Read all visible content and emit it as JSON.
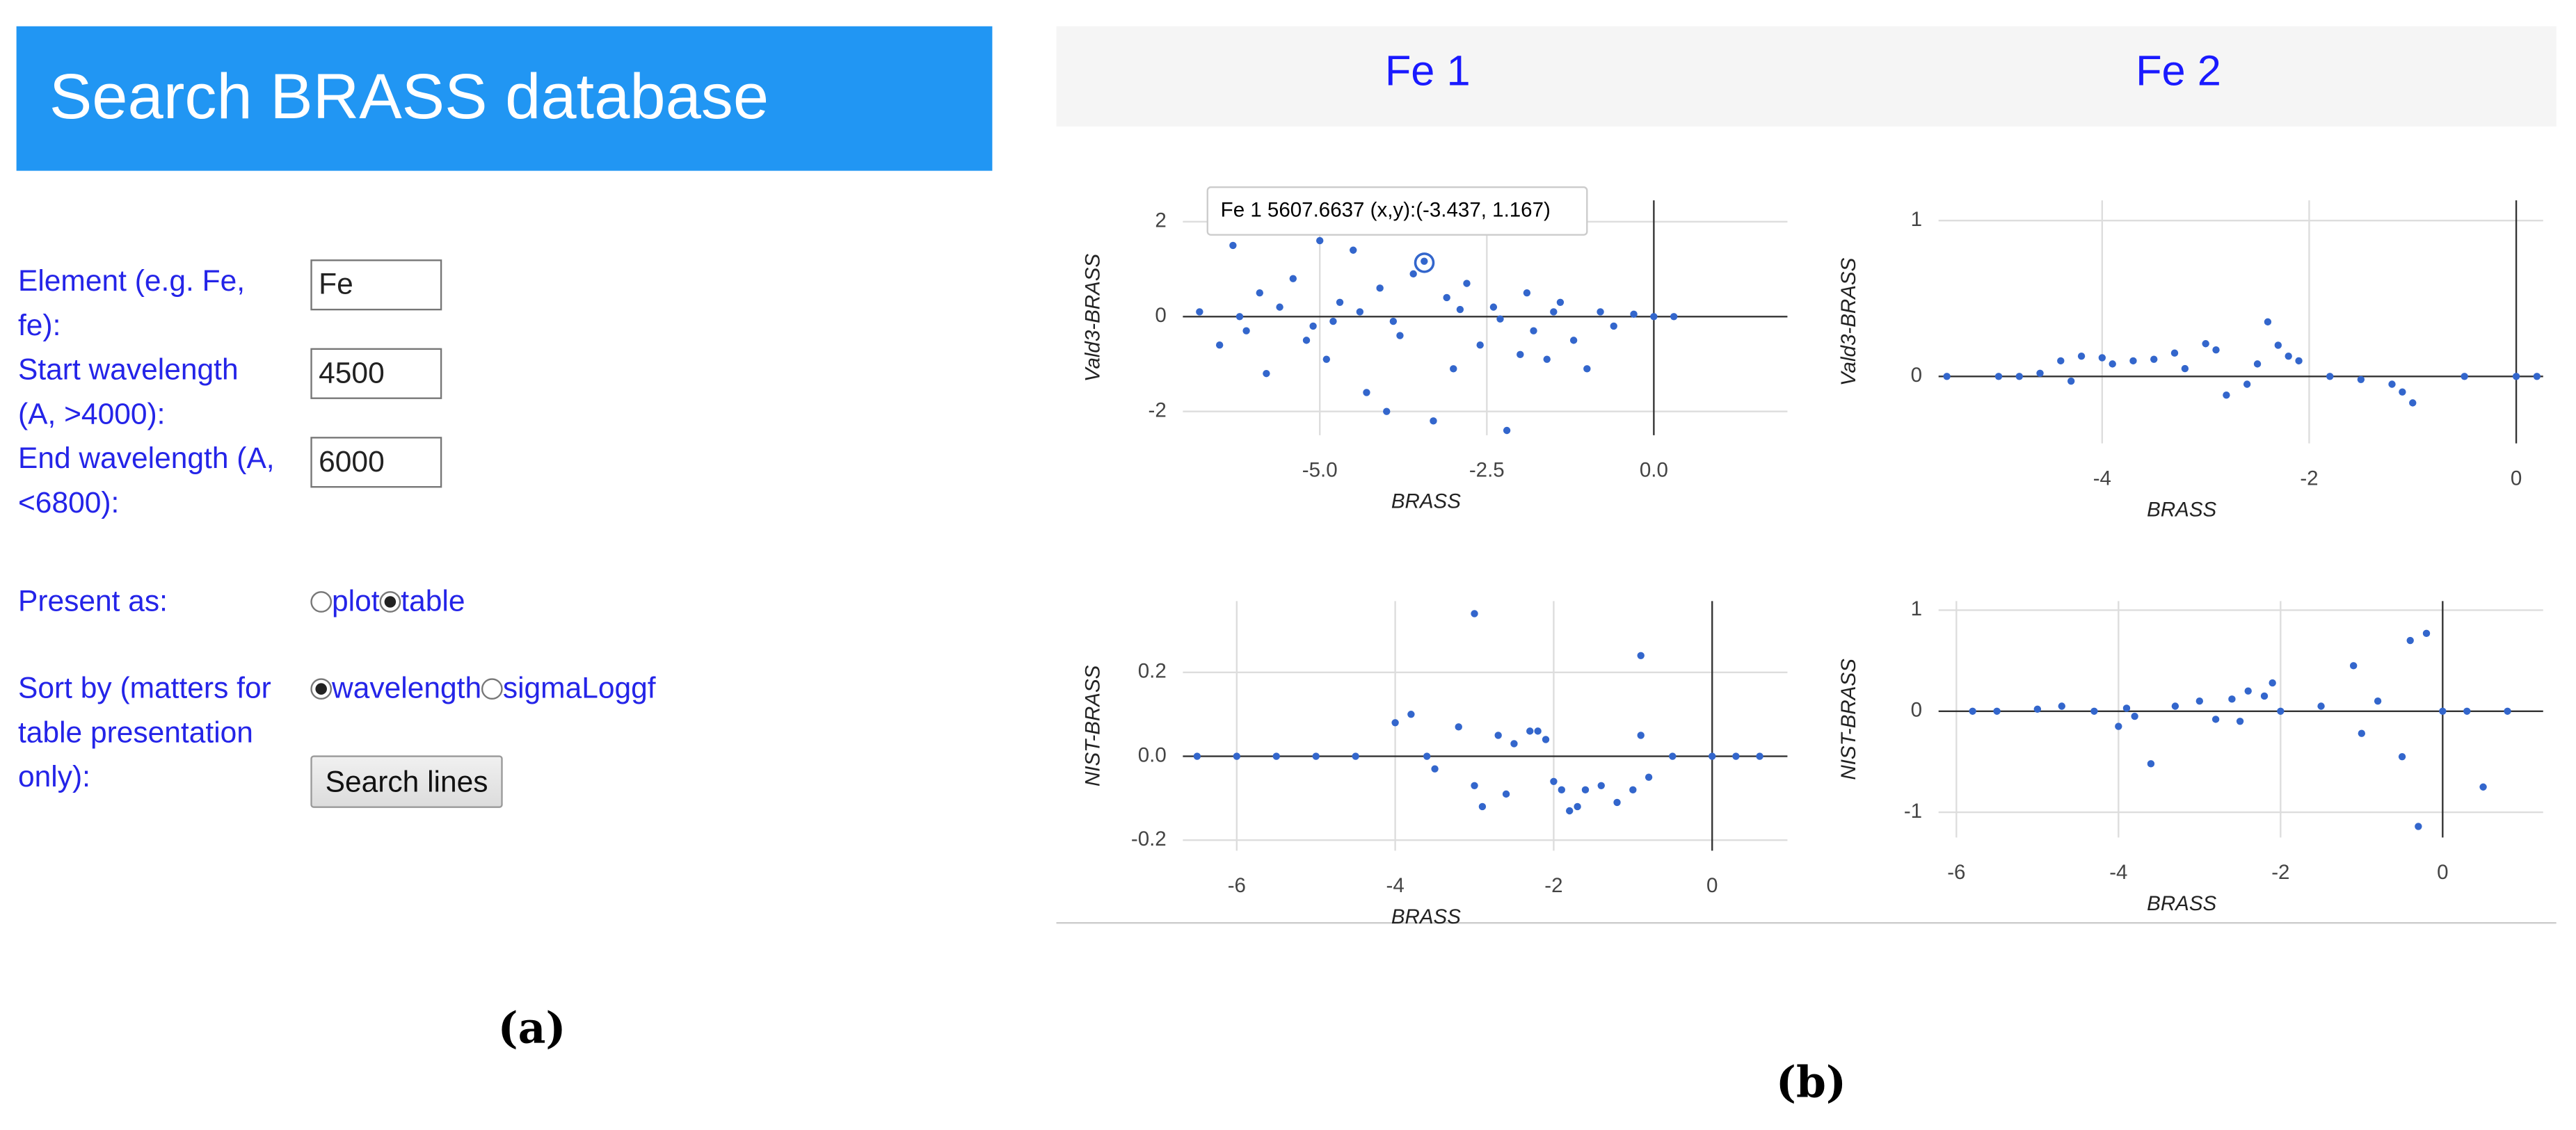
{
  "form": {
    "title": "Search BRASS database",
    "fields": [
      {
        "label": "Element (e.g. Fe, fe):",
        "value": "Fe"
      },
      {
        "label": "Start wavelength (A, >4000):",
        "value": "4500"
      },
      {
        "label": "End wavelength (A, <6800):",
        "value": "6000"
      }
    ],
    "present_as": {
      "label": "Present as:",
      "options": [
        "plot",
        "table"
      ],
      "selected": 1
    },
    "sort_by": {
      "label": "Sort by (matters for table presentation only):",
      "options": [
        "wavelength",
        "sigmaLoggf"
      ],
      "selected": 0
    },
    "button": "Search lines",
    "caption": "(a)"
  },
  "plots": {
    "columns": [
      "Fe 1",
      "Fe 2"
    ],
    "caption": "(b)"
  },
  "chart_data": [
    {
      "type": "scatter",
      "x_label": "BRASS",
      "y_label": "Vald3-BRASS",
      "color": "#3366cc",
      "grid": true,
      "annotation": "Fe 1 5607.6637 (x,y):(-3.437, 1.167)",
      "x": [
        -6.8,
        -6.5,
        -6.3,
        -6.1,
        -5.9,
        -5.8,
        -5.6,
        -5.4,
        -5.2,
        -5.0,
        -4.9,
        -4.7,
        -4.5,
        -4.3,
        -4.1,
        -4.0,
        -3.8,
        -3.6,
        -3.437,
        -3.3,
        -3.1,
        -3.0,
        -2.8,
        -2.6,
        -2.4,
        -2.2,
        -2.0,
        -1.9,
        -1.8,
        -1.6,
        -1.4,
        -1.2,
        -1.0,
        -0.8,
        -0.6,
        -0.3,
        0.0,
        0.3,
        -5.1,
        -4.4,
        -3.9,
        -2.9,
        -2.3,
        -1.5,
        -6.2,
        -4.8
      ],
      "values": [
        0.1,
        -0.6,
        1.5,
        -0.3,
        0.5,
        -1.2,
        0.2,
        0.8,
        -0.5,
        1.6,
        -0.9,
        0.3,
        1.4,
        -1.6,
        0.6,
        -2.0,
        -0.4,
        0.9,
        1.167,
        -2.2,
        0.4,
        -1.1,
        0.7,
        -0.6,
        0.2,
        -2.4,
        -0.8,
        0.5,
        -0.3,
        -0.9,
        0.3,
        -0.5,
        -1.1,
        0.1,
        -0.2,
        0.05,
        0.0,
        0.0,
        -0.2,
        0.1,
        -0.1,
        0.15,
        -0.05,
        0.1,
        0.0,
        -0.1
      ],
      "xlim": [
        -7.05,
        2.0
      ],
      "ylim": [
        -2.5,
        2.45
      ],
      "xticks": [
        {
          "value": -5,
          "label": "-5.0"
        },
        {
          "value": -2.5,
          "label": "-2.5"
        },
        {
          "value": 0,
          "label": "0.0"
        }
      ],
      "yticks": [
        -2,
        0,
        2
      ]
    },
    {
      "type": "scatter",
      "x_label": "BRASS",
      "y_label": "Vald3-BRASS",
      "color": "#3366cc",
      "grid": true,
      "x": [
        -4.6,
        -4.4,
        -4.3,
        -4.2,
        -4.0,
        -3.9,
        -3.7,
        -3.5,
        -3.3,
        -3.2,
        -3.0,
        -2.9,
        -2.8,
        -2.6,
        -2.5,
        -2.4,
        -2.3,
        -2.2,
        -2.1,
        -1.8,
        -1.5,
        -1.2,
        -1.1,
        -5.5,
        -5.0,
        -4.8,
        -1.0,
        -0.5,
        0.0,
        0.2
      ],
      "values": [
        0.02,
        0.1,
        -0.03,
        0.13,
        0.12,
        0.08,
        0.1,
        0.11,
        0.15,
        0.05,
        0.21,
        0.17,
        -0.12,
        -0.05,
        0.08,
        0.35,
        0.2,
        0.13,
        0.1,
        0.0,
        -0.02,
        -0.05,
        -0.1,
        0.0,
        0.0,
        0.0,
        -0.17,
        0.0,
        0.0,
        0.0
      ],
      "xlim": [
        -5.58,
        0.26
      ],
      "ylim": [
        -0.43,
        1.13
      ],
      "xticks": [
        -4,
        -2,
        0
      ],
      "yticks": [
        0,
        1
      ]
    },
    {
      "type": "scatter",
      "x_label": "BRASS",
      "y_label": "NIST-BRASS",
      "color": "#3366cc",
      "grid": true,
      "x": [
        -6.5,
        -6.0,
        -5.5,
        -5.0,
        -4.5,
        -4.0,
        -3.8,
        -3.6,
        -3.5,
        -3.2,
        -3.0,
        -2.9,
        -2.7,
        -2.5,
        -2.3,
        -2.2,
        -2.0,
        -1.9,
        -1.8,
        -1.6,
        -1.4,
        -1.2,
        -1.0,
        -0.9,
        -0.8,
        -0.5,
        0.0,
        0.3,
        0.6,
        -3.0,
        -0.9,
        -2.6,
        -1.7,
        -2.1
      ],
      "values": [
        0.0,
        0.0,
        0.0,
        0.0,
        0.0,
        0.08,
        0.1,
        0.0,
        -0.03,
        0.07,
        0.34,
        -0.12,
        0.05,
        0.03,
        0.06,
        0.06,
        -0.06,
        -0.08,
        -0.13,
        -0.08,
        -0.07,
        -0.11,
        -0.08,
        0.24,
        -0.05,
        0.0,
        0.0,
        0.0,
        0.0,
        -0.07,
        0.05,
        -0.09,
        -0.12,
        0.04
      ],
      "xlim": [
        -6.68,
        0.95
      ],
      "ylim": [
        -0.225,
        0.37
      ],
      "xticks": [
        -6,
        -4,
        -2,
        0
      ],
      "yticks": [
        -0.2,
        {
          "value": 0,
          "label": "0.0"
        },
        0.2
      ]
    },
    {
      "type": "scatter",
      "x_label": "BRASS",
      "y_label": "NIST-BRASS",
      "color": "#3366cc",
      "grid": true,
      "x": [
        -5.8,
        -5.5,
        -5.0,
        -4.7,
        -4.3,
        -4.0,
        -3.8,
        -3.6,
        -3.3,
        -3.0,
        -2.8,
        -2.6,
        -2.4,
        -2.2,
        -2.1,
        -2.0,
        -1.5,
        -1.1,
        -1.0,
        -0.8,
        -0.5,
        -0.4,
        -0.3,
        -0.2,
        0.0,
        0.3,
        0.5,
        0.8,
        -3.9,
        -2.5
      ],
      "values": [
        0.0,
        0.0,
        0.02,
        0.05,
        0.0,
        -0.15,
        -0.05,
        -0.52,
        0.05,
        0.1,
        -0.08,
        0.12,
        0.2,
        0.15,
        0.28,
        0.0,
        0.05,
        0.45,
        -0.22,
        0.1,
        -0.45,
        0.7,
        -1.14,
        0.77,
        0.0,
        0.0,
        -0.75,
        0.0,
        0.03,
        -0.1
      ],
      "xlim": [
        -6.22,
        1.24
      ],
      "ylim": [
        -1.25,
        1.09
      ],
      "xticks": [
        -6,
        -4,
        -2,
        0
      ],
      "yticks": [
        -1,
        0,
        1
      ]
    }
  ]
}
